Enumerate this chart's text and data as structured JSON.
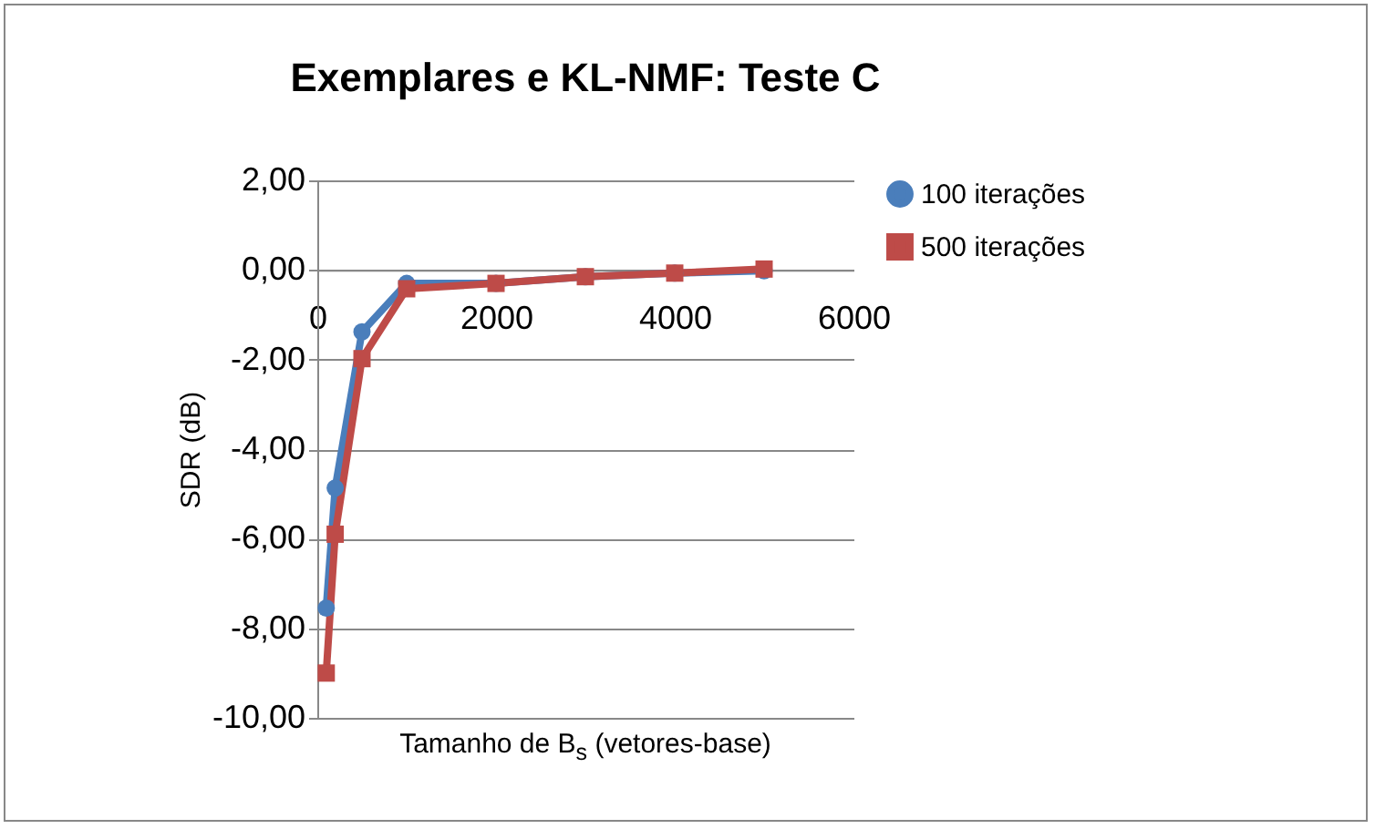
{
  "chart_data": {
    "type": "line",
    "title": "Exemplares e KL-NMF: Teste C",
    "xlabel": "Tamanho de B$_{s}$ (vetores-base)",
    "ylabel": "SDR (dB)",
    "x": [
      100,
      200,
      500,
      1000,
      2000,
      3000,
      4000,
      5000
    ],
    "series": [
      {
        "name": "100 iterações",
        "color": "#4a7ebb",
        "marker": "circle",
        "values": [
          -7.55,
          -4.87,
          -1.38,
          -0.3,
          -0.3,
          -0.15,
          -0.07,
          -0.02
        ]
      },
      {
        "name": "500 iterações",
        "color": "#be4b48",
        "marker": "square",
        "values": [
          -9.0,
          -5.9,
          -1.98,
          -0.42,
          -0.3,
          -0.15,
          -0.07,
          0.02
        ]
      }
    ],
    "xlim": [
      0,
      6000
    ],
    "xticks": [
      0,
      2000,
      4000,
      6000
    ],
    "ylim": [
      -10,
      2
    ],
    "yticks": [
      {
        "value": -10,
        "label": "-10,00"
      },
      {
        "value": -8,
        "label": "-8,00"
      },
      {
        "value": -6,
        "label": "-6,00"
      },
      {
        "value": -4,
        "label": "-4,00"
      },
      {
        "value": -2,
        "label": "-2,00"
      },
      {
        "value": 0,
        "label": "0,00"
      },
      {
        "value": 2,
        "label": "2,00"
      }
    ],
    "grid": "y",
    "legend": "right"
  }
}
